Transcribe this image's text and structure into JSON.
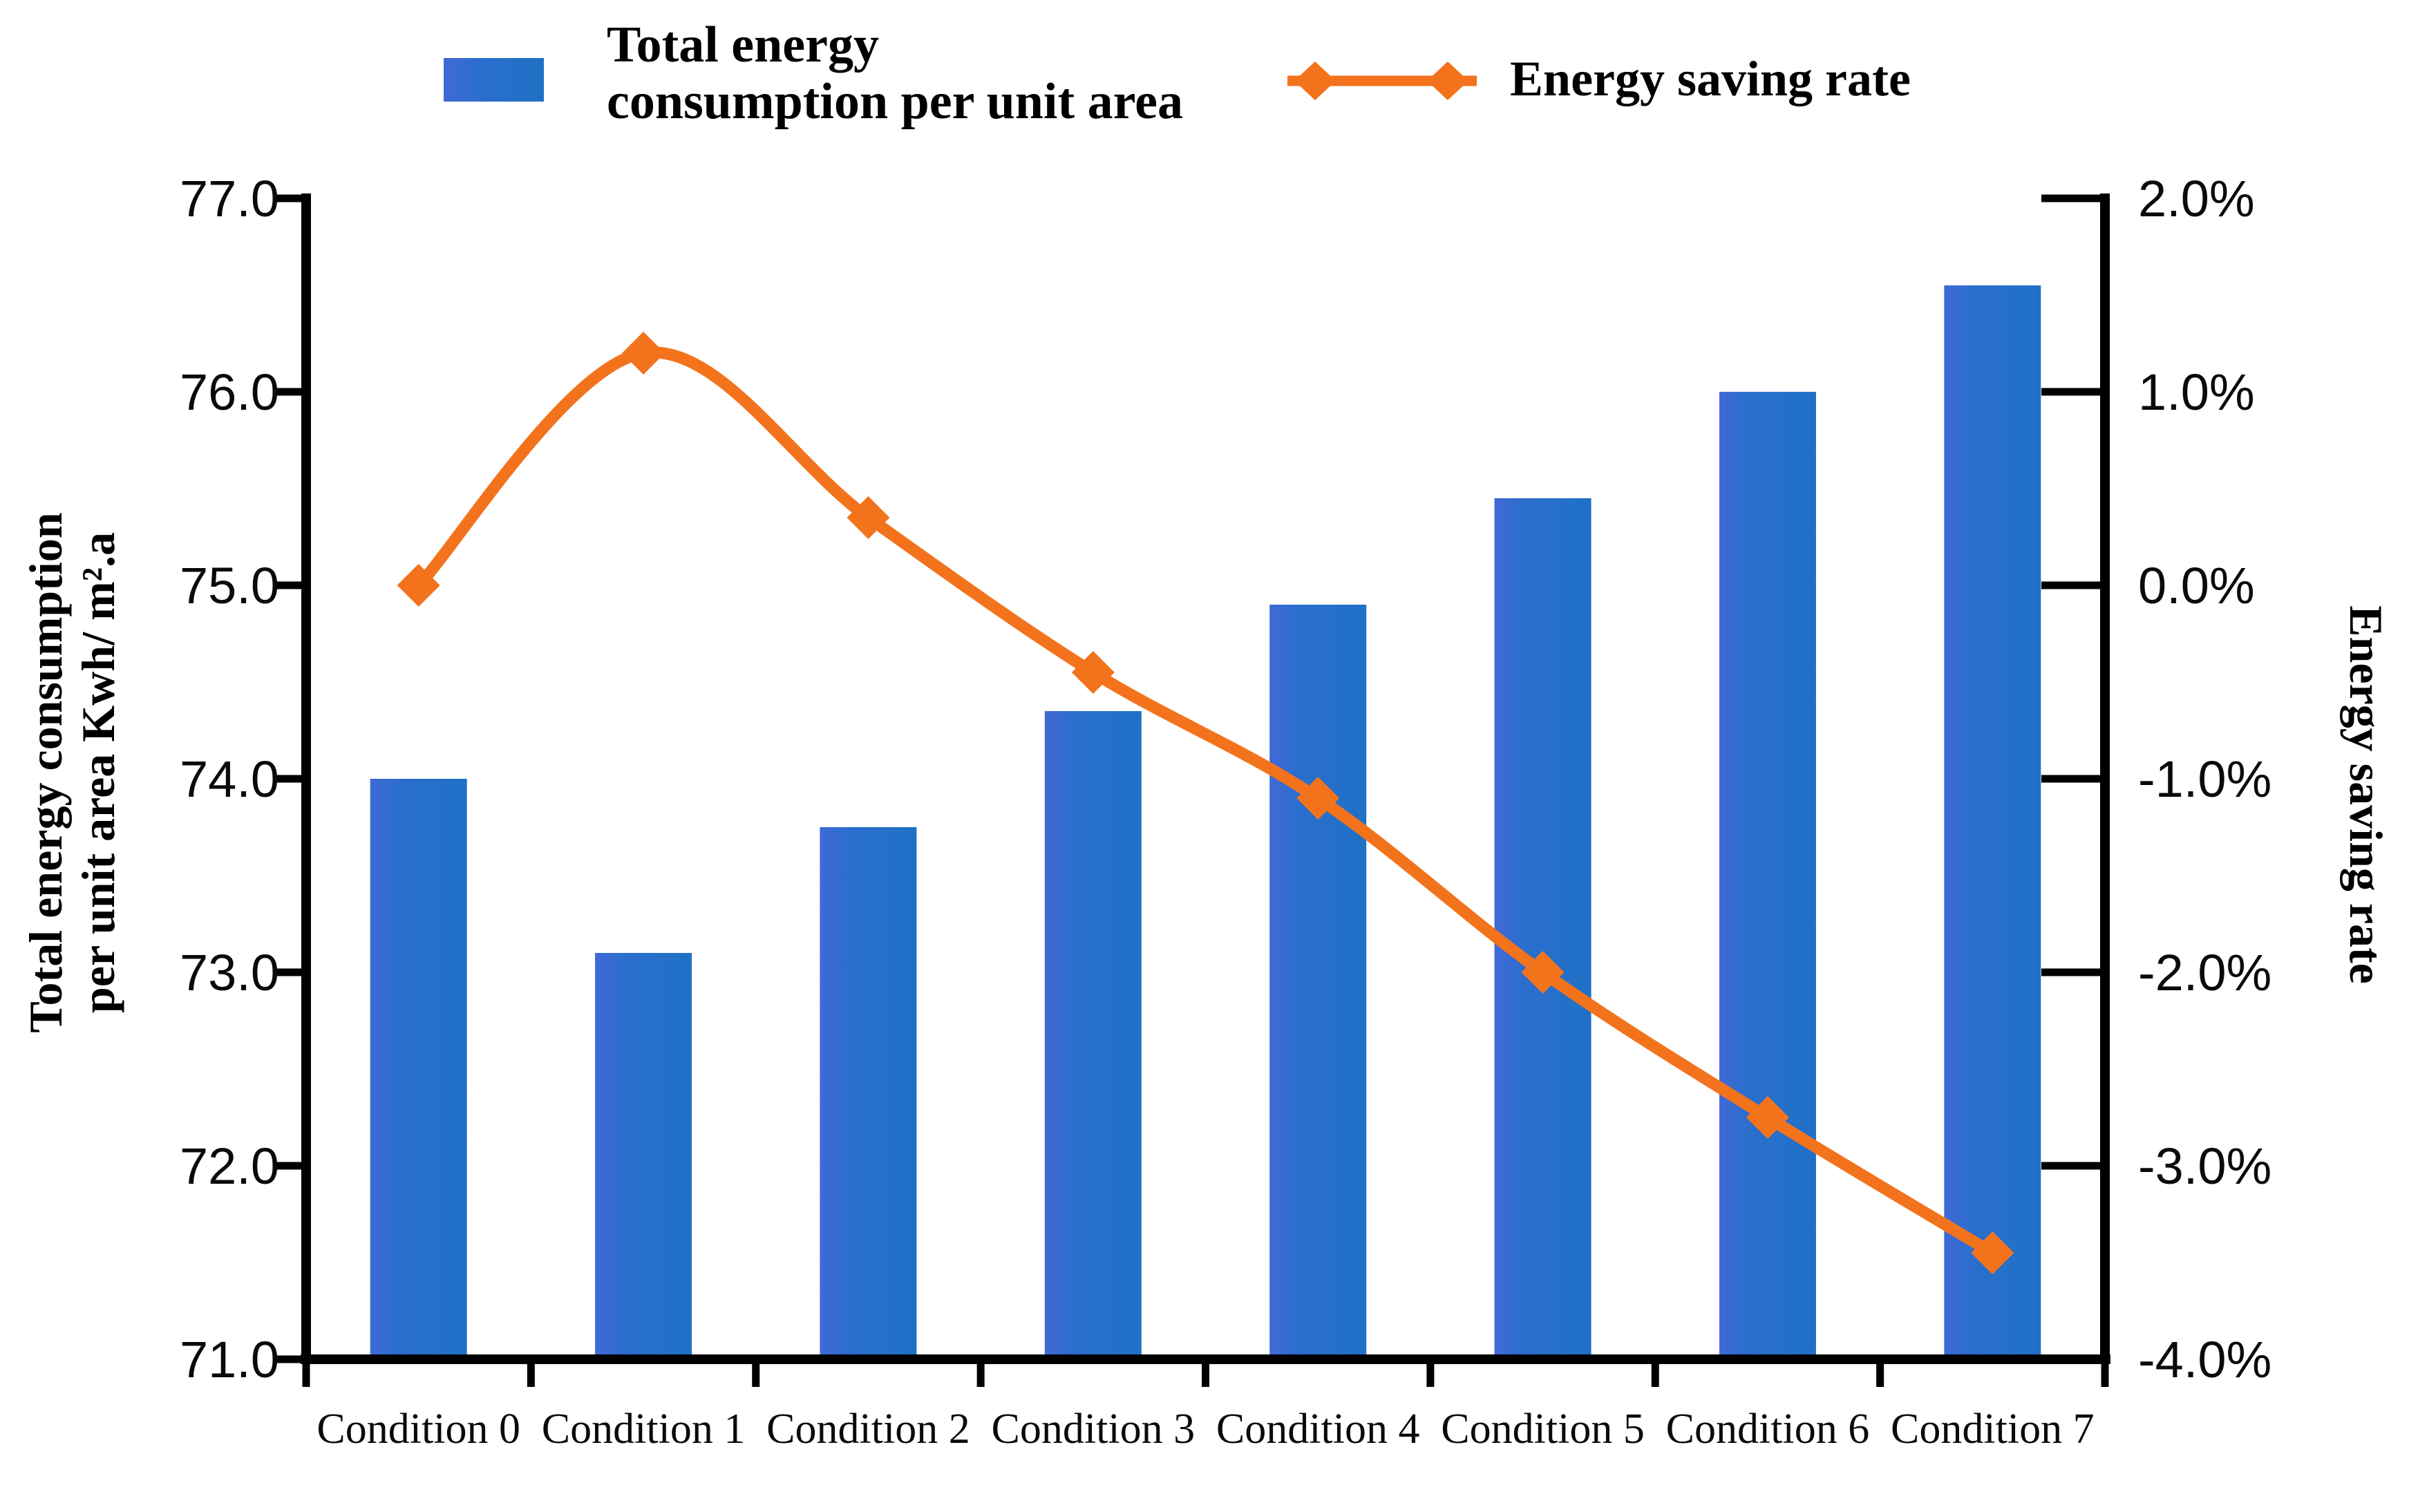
{
  "page": {
    "background": "#ffffff"
  },
  "legend": {
    "bar_label": "Total energy consumption per unit area",
    "bar_label_lines": [
      "Total energy",
      "consumption per unit area"
    ],
    "line_label": "Energy saving rate"
  },
  "colors": {
    "bar": "#2b6ecd",
    "line": "#f3731d",
    "axis": "#000000",
    "text": "#000000"
  },
  "chart_data": {
    "type": "combo",
    "subtype": "bar+smooth-line",
    "grid": false,
    "legend_position": "top",
    "categories": [
      "Condition 0",
      "Condition 1",
      "Condition 2",
      "Condition 3",
      "Condition 4",
      "Condition 5",
      "Condition 6",
      "Condition 7"
    ],
    "series": [
      {
        "name": "Total energy consumption per unit area",
        "type": "bar",
        "axis": "left",
        "color": "#2b6ecd",
        "values": [
          74.0,
          73.1,
          73.75,
          74.35,
          74.9,
          75.45,
          76.0,
          76.55
        ]
      },
      {
        "name": "Energy saving rate",
        "type": "line",
        "axis": "right",
        "color": "#f3731d",
        "marker": "diamond",
        "values_percent": [
          0.0,
          1.2,
          0.35,
          -0.45,
          -1.1,
          -2.0,
          -2.75,
          -3.45
        ]
      }
    ],
    "left_axis": {
      "title": "Total energy consumption per unit area Kwh/ m².a",
      "title_lines": [
        "Total energy consumption",
        "per unit area Kwh/ m².a"
      ],
      "min": 71.0,
      "max": 77.0,
      "step": 1.0,
      "tick_labels": [
        "77.0",
        "76.0",
        "75.0",
        "74.0",
        "73.0",
        "72.0",
        "71.0"
      ]
    },
    "right_axis": {
      "title": "Energy saving rate",
      "min": -4.0,
      "max": 2.0,
      "step": 1.0,
      "tick_labels": [
        "2.0%",
        "1.0%",
        "0.0%",
        "-1.0%",
        "-2.0%",
        "-3.0%",
        "-4.0%"
      ]
    },
    "x_axis": {
      "tick_labels": [
        "Condition 0",
        "Condition 1",
        "Condition 2",
        "Condition 3",
        "Condition 4",
        "Condition 5",
        "Condition 6",
        "Condition 7"
      ]
    }
  }
}
